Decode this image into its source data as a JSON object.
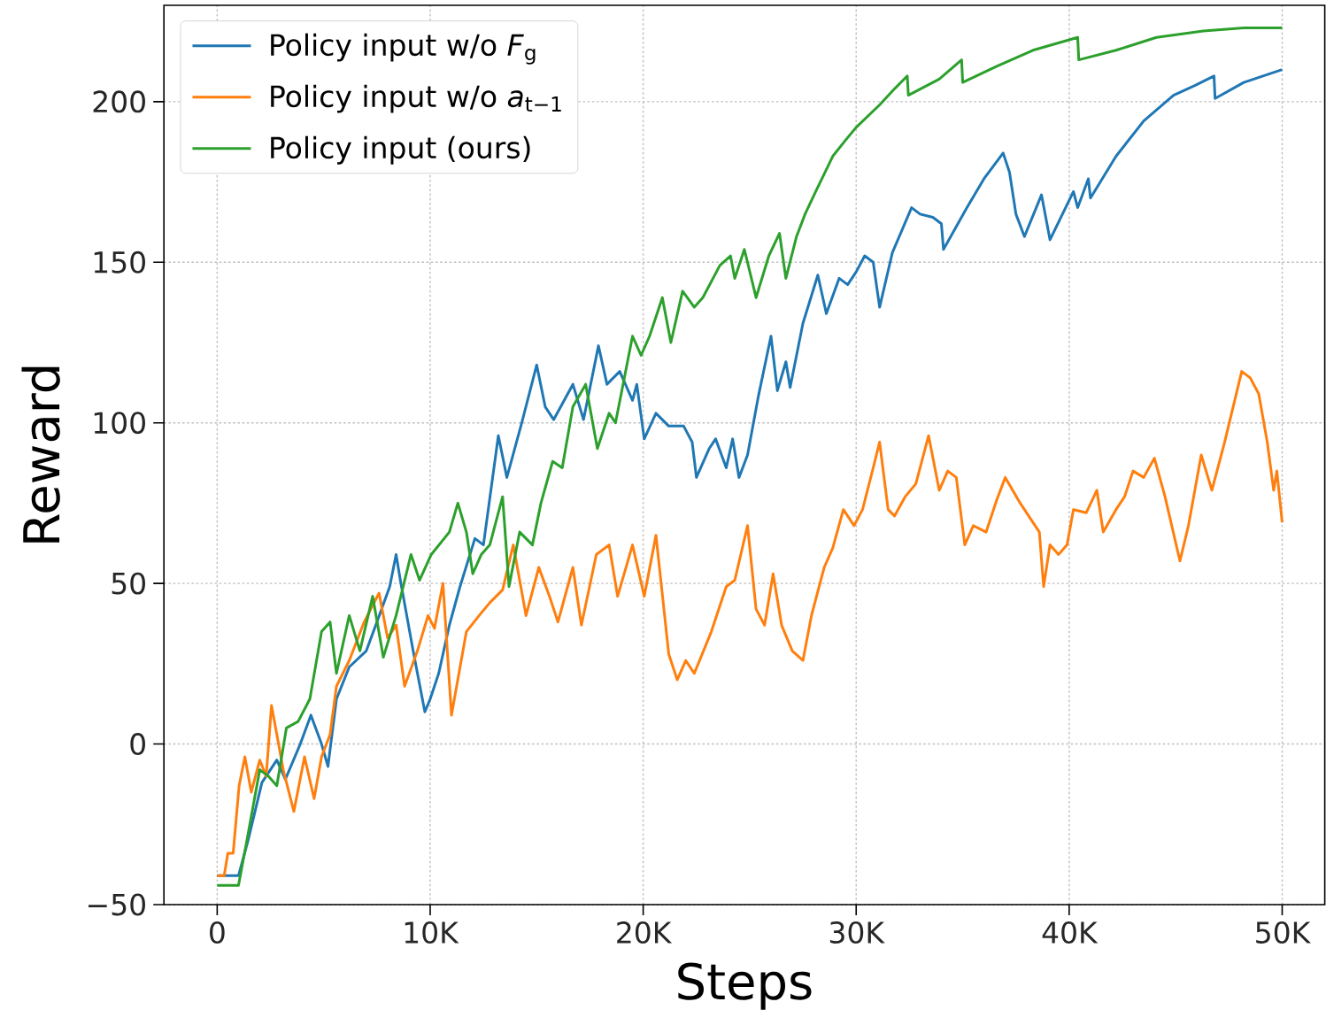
{
  "chart_data": {
    "type": "line",
    "xlabel": "Steps",
    "ylabel": "Reward",
    "xlim": [
      -2500,
      52000
    ],
    "ylim": [
      -50,
      230
    ],
    "xticks": [
      {
        "value": 0,
        "label": "0"
      },
      {
        "value": 10000,
        "label": "10K"
      },
      {
        "value": 20000,
        "label": "20K"
      },
      {
        "value": 30000,
        "label": "30K"
      },
      {
        "value": 40000,
        "label": "40K"
      },
      {
        "value": 50000,
        "label": "50K"
      }
    ],
    "yticks": [
      {
        "value": -50,
        "label": "−50"
      },
      0,
      50,
      100,
      150,
      200
    ],
    "grid": true,
    "legend": "top left",
    "line_style": "solid",
    "series": [
      {
        "name": "Policy input w/o *F*$_{g}$",
        "color": "#1f77b4",
        "x": [
          0,
          1000,
          1450,
          2100,
          2800,
          3200,
          3900,
          4400,
          4900,
          5200,
          5600,
          6200,
          7000,
          7500,
          8100,
          8400,
          8600,
          9200,
          9750,
          10000,
          10400,
          10900,
          11400,
          12100,
          12500,
          13200,
          13600,
          14300,
          15000,
          15400,
          15800,
          16700,
          17200,
          17900,
          18300,
          18900,
          19500,
          19700,
          20050,
          20600,
          21200,
          21900,
          22300,
          22500,
          23100,
          23400,
          23900,
          24200,
          24500,
          24900,
          25400,
          26000,
          26300,
          26700,
          26900,
          27500,
          28200,
          28600,
          29200,
          29600,
          30000,
          30400,
          30800,
          31100,
          31700,
          32600,
          33000,
          33600,
          34000,
          34100,
          35200,
          36000,
          36900,
          37200,
          37500,
          37900,
          38700,
          39100,
          40200,
          40400,
          40900,
          41000,
          42200,
          43500,
          44900,
          45900,
          46800,
          46850,
          48200,
          50000
        ],
        "values": [
          -41,
          -41,
          -30,
          -12,
          -5,
          -11,
          0,
          9,
          0,
          -7,
          14,
          24,
          29,
          38,
          49,
          59,
          51,
          29,
          10,
          14,
          22,
          37,
          49,
          64,
          62,
          96,
          83,
          100,
          118,
          105,
          101,
          112,
          101,
          124,
          112,
          116,
          107,
          112,
          95,
          103,
          99,
          99,
          94,
          83,
          92,
          95,
          86,
          95,
          83,
          90,
          108,
          127,
          110,
          119,
          111,
          131,
          146,
          134,
          145,
          143,
          147,
          152,
          150,
          136,
          153,
          167,
          165,
          164,
          162,
          154,
          167,
          176,
          184,
          178,
          165,
          158,
          171,
          157,
          172,
          167,
          176,
          170,
          183,
          194,
          202,
          205,
          208,
          201,
          206,
          210
        ]
      },
      {
        "name": "Policy input w/o *a*$_{t−1}$",
        "color": "#ff7f0e",
        "x": [
          0,
          330,
          500,
          750,
          1030,
          1300,
          1600,
          2000,
          2300,
          2550,
          2800,
          3100,
          3600,
          4100,
          4550,
          4900,
          5300,
          5600,
          6200,
          6900,
          7600,
          8000,
          8400,
          8800,
          9400,
          9900,
          10200,
          10600,
          11000,
          11700,
          12300,
          12800,
          13400,
          13900,
          14500,
          15100,
          15600,
          16000,
          16700,
          17100,
          17800,
          18400,
          18800,
          19500,
          20050,
          20600,
          21200,
          21600,
          22000,
          22400,
          23200,
          23900,
          24300,
          24900,
          25300,
          25700,
          26100,
          26500,
          27000,
          27500,
          27900,
          28500,
          28900,
          29400,
          29900,
          30300,
          30800,
          31100,
          31500,
          31800,
          32300,
          32800,
          33400,
          33900,
          34300,
          34700,
          35100,
          35500,
          36100,
          36600,
          37000,
          37700,
          38600,
          38800,
          39100,
          39500,
          39900,
          40200,
          40800,
          41300,
          41600,
          42200,
          42600,
          43000,
          43500,
          44000,
          44500,
          45200,
          45600,
          46200,
          46700,
          47300,
          48100,
          48500,
          48900,
          49300,
          49600,
          49750,
          50000
        ],
        "values": [
          -41,
          -41,
          -34,
          -34,
          -13,
          -4,
          -15,
          -5,
          -10,
          12,
          3,
          -8,
          -21,
          -4,
          -17,
          -4,
          3,
          18,
          26,
          38,
          47,
          33,
          37,
          18,
          29,
          40,
          36,
          50,
          9,
          35,
          40,
          44,
          48,
          62,
          40,
          55,
          46,
          38,
          55,
          37,
          59,
          62,
          46,
          62,
          46,
          65,
          28,
          20,
          26,
          22,
          35,
          49,
          51,
          68,
          42,
          37,
          53,
          37,
          29,
          26,
          40,
          55,
          61,
          73,
          68,
          73,
          86,
          94,
          73,
          71,
          77,
          81,
          96,
          79,
          85,
          83,
          62,
          68,
          66,
          76,
          83,
          75,
          66,
          49,
          62,
          59,
          62,
          73,
          72,
          79,
          66,
          73,
          77,
          85,
          83,
          89,
          77,
          57,
          68,
          90,
          79,
          94,
          116,
          114,
          109,
          94,
          79,
          85,
          69
        ]
      },
      {
        "name": "Policy input (ours)",
        "color": "#2ca02c",
        "x": [
          0,
          1000,
          1450,
          2000,
          2400,
          2800,
          3250,
          3800,
          4350,
          4900,
          5300,
          5600,
          6200,
          6700,
          7300,
          7800,
          8400,
          9100,
          9500,
          10050,
          10900,
          11300,
          11700,
          12000,
          12400,
          12800,
          13400,
          13700,
          14200,
          14800,
          15200,
          15750,
          16200,
          16700,
          17300,
          17850,
          18400,
          18700,
          19500,
          19900,
          20300,
          20900,
          21300,
          21850,
          22400,
          22800,
          23600,
          24100,
          24300,
          24750,
          25300,
          25900,
          26400,
          26700,
          27200,
          27600,
          28100,
          28900,
          29500,
          30000,
          31100,
          31800,
          32400,
          32450,
          33900,
          34950,
          35000,
          36600,
          38300,
          40400,
          40450,
          42200,
          44100,
          46300,
          48200,
          50000
        ],
        "values": [
          -44,
          -44,
          -28,
          -8,
          -10,
          -13,
          5,
          7,
          14,
          35,
          38,
          22,
          40,
          29,
          46,
          27,
          40,
          59,
          51,
          59,
          66,
          75,
          66,
          53,
          59,
          62,
          77,
          49,
          66,
          62,
          75,
          88,
          86,
          105,
          112,
          92,
          103,
          100,
          127,
          121,
          127,
          139,
          125,
          141,
          136,
          139,
          149,
          152,
          145,
          154,
          139,
          152,
          159,
          145,
          158,
          165,
          172,
          183,
          188,
          192,
          199,
          204,
          208,
          202,
          207,
          213,
          206,
          211,
          216,
          220,
          213,
          216,
          220,
          222,
          223,
          223
        ]
      }
    ]
  }
}
